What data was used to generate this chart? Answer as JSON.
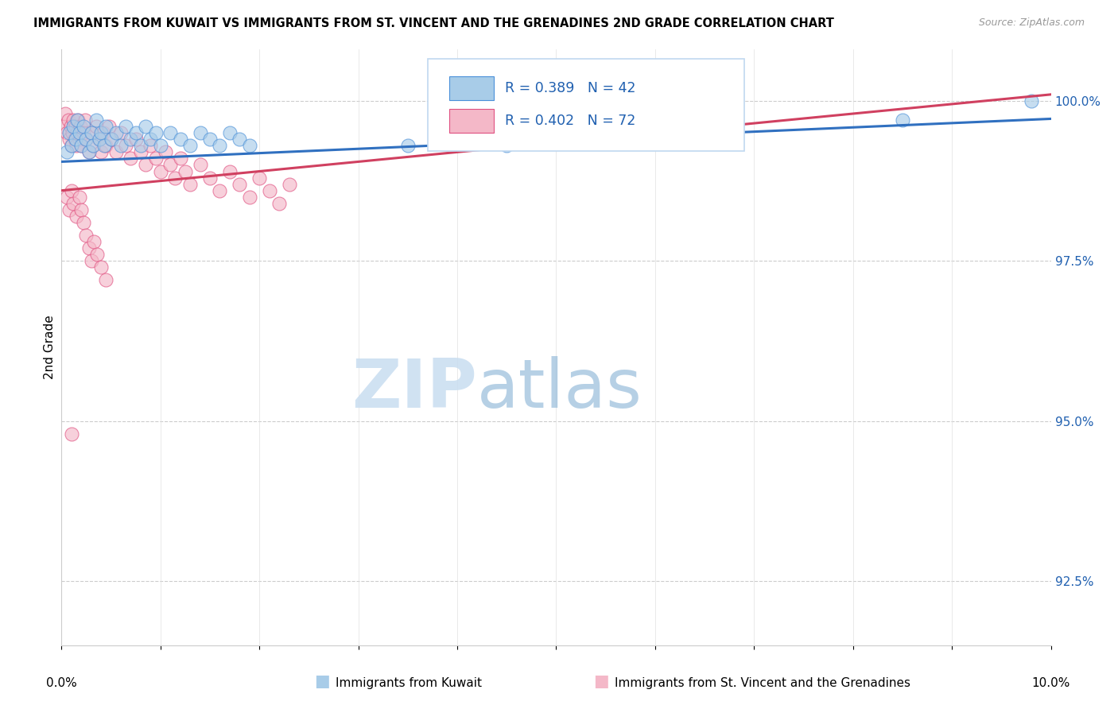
{
  "title": "IMMIGRANTS FROM KUWAIT VS IMMIGRANTS FROM ST. VINCENT AND THE GRENADINES 2ND GRADE CORRELATION CHART",
  "source": "Source: ZipAtlas.com",
  "ylabel": "2nd Grade",
  "ylabel_ticks": [
    92.5,
    95.0,
    97.5,
    100.0
  ],
  "ylabel_tick_labels": [
    "92.5%",
    "95.0%",
    "97.5%",
    "100.0%"
  ],
  "xmin": 0.0,
  "xmax": 10.0,
  "ymin": 91.5,
  "ymax": 100.8,
  "legend_blue_label": "R = 0.389   N = 42",
  "legend_pink_label": "R = 0.402   N = 72",
  "blue_color": "#a8cce8",
  "pink_color": "#f4b8c8",
  "blue_edge_color": "#4a90d9",
  "pink_edge_color": "#e05080",
  "blue_line_color": "#3070c0",
  "pink_line_color": "#d04060",
  "watermark_zip": "ZIP",
  "watermark_atlas": "atlas",
  "bottom_label_blue": "Immigrants from Kuwait",
  "bottom_label_pink": "Immigrants from St. Vincent and the Grenadines",
  "blue_scatter_x": [
    0.05,
    0.08,
    0.1,
    0.12,
    0.14,
    0.16,
    0.18,
    0.2,
    0.22,
    0.25,
    0.28,
    0.3,
    0.32,
    0.35,
    0.38,
    0.4,
    0.43,
    0.45,
    0.5,
    0.55,
    0.6,
    0.65,
    0.7,
    0.75,
    0.8,
    0.85,
    0.9,
    0.95,
    1.0,
    1.1,
    1.2,
    1.3,
    1.4,
    1.5,
    1.6,
    1.7,
    1.8,
    1.9,
    3.5,
    4.5,
    8.5,
    9.8
  ],
  "blue_scatter_y": [
    99.2,
    99.5,
    99.3,
    99.6,
    99.4,
    99.7,
    99.5,
    99.3,
    99.6,
    99.4,
    99.2,
    99.5,
    99.3,
    99.7,
    99.4,
    99.5,
    99.3,
    99.6,
    99.4,
    99.5,
    99.3,
    99.6,
    99.4,
    99.5,
    99.3,
    99.6,
    99.4,
    99.5,
    99.3,
    99.5,
    99.4,
    99.3,
    99.5,
    99.4,
    99.3,
    99.5,
    99.4,
    99.3,
    99.3,
    99.3,
    99.7,
    100.0
  ],
  "pink_scatter_x": [
    0.02,
    0.04,
    0.05,
    0.07,
    0.08,
    0.09,
    0.1,
    0.11,
    0.12,
    0.13,
    0.14,
    0.15,
    0.16,
    0.17,
    0.18,
    0.19,
    0.2,
    0.22,
    0.24,
    0.25,
    0.28,
    0.3,
    0.32,
    0.35,
    0.38,
    0.4,
    0.42,
    0.45,
    0.48,
    0.5,
    0.55,
    0.6,
    0.65,
    0.7,
    0.75,
    0.8,
    0.85,
    0.9,
    0.95,
    1.0,
    1.05,
    1.1,
    1.15,
    1.2,
    1.25,
    1.3,
    1.4,
    1.5,
    1.6,
    1.7,
    1.8,
    1.9,
    2.0,
    2.1,
    2.2,
    2.3,
    0.05,
    0.08,
    0.1,
    0.12,
    0.15,
    0.18,
    0.2,
    0.22,
    0.25,
    0.28,
    0.3,
    0.33,
    0.36,
    0.4,
    0.45,
    0.1
  ],
  "pink_scatter_y": [
    99.6,
    99.8,
    99.5,
    99.7,
    99.4,
    99.6,
    99.3,
    99.5,
    99.7,
    99.4,
    99.6,
    99.3,
    99.5,
    99.7,
    99.4,
    99.6,
    99.3,
    99.5,
    99.7,
    99.4,
    99.2,
    99.5,
    99.3,
    99.6,
    99.4,
    99.2,
    99.5,
    99.3,
    99.6,
    99.4,
    99.2,
    99.5,
    99.3,
    99.1,
    99.4,
    99.2,
    99.0,
    99.3,
    99.1,
    98.9,
    99.2,
    99.0,
    98.8,
    99.1,
    98.9,
    98.7,
    99.0,
    98.8,
    98.6,
    98.9,
    98.7,
    98.5,
    98.8,
    98.6,
    98.4,
    98.7,
    98.5,
    98.3,
    98.6,
    98.4,
    98.2,
    98.5,
    98.3,
    98.1,
    97.9,
    97.7,
    97.5,
    97.8,
    97.6,
    97.4,
    97.2,
    94.8
  ],
  "blue_trendline_x": [
    0.0,
    10.0
  ],
  "blue_trendline_y": [
    99.05,
    99.72
  ],
  "pink_trendline_x": [
    0.0,
    10.0
  ],
  "pink_trendline_y": [
    98.6,
    100.1
  ]
}
